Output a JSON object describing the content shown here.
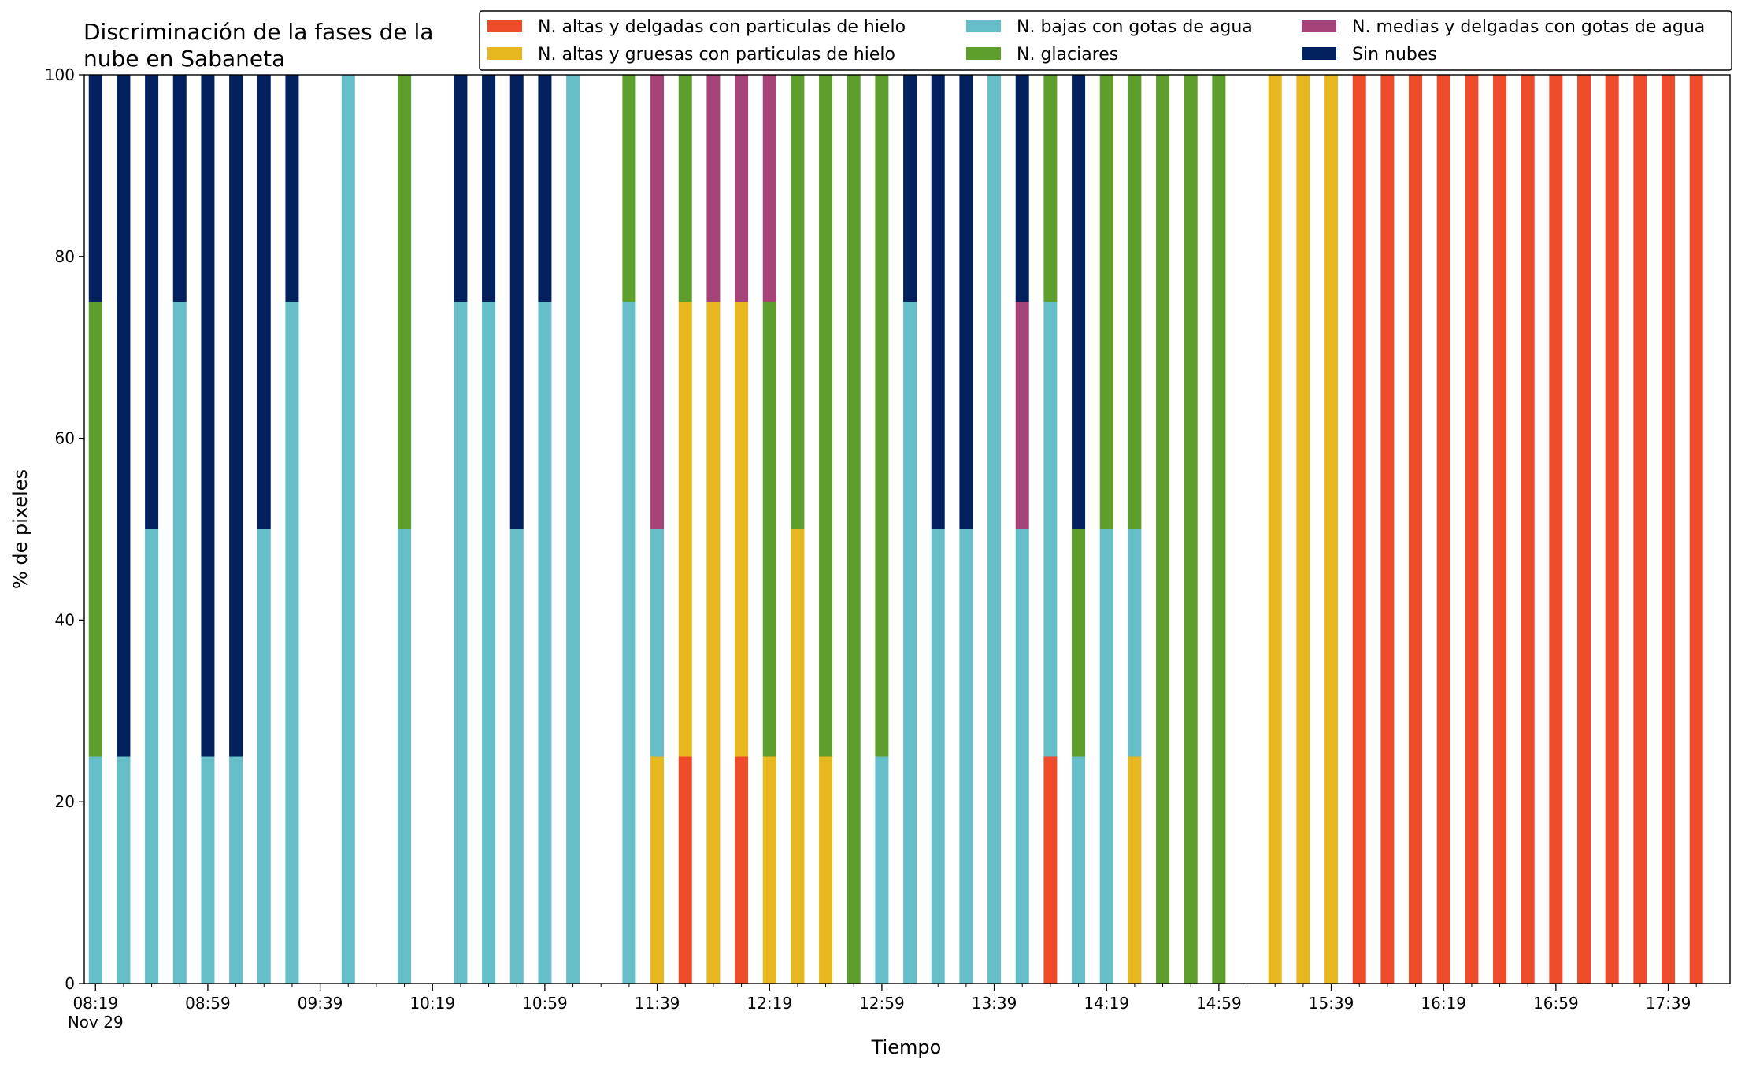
{
  "chart_data": {
    "type": "stacked_bar",
    "title": "Discriminación de la fases de la\nnube en Sabaneta",
    "x_label": "Tiempo",
    "y_label": "% de pixeles",
    "x_date_label": "Nov 29",
    "x": [
      "08:19",
      "08:29",
      "08:39",
      "08:49",
      "08:59",
      "09:09",
      "09:19",
      "09:29",
      "09:39",
      "09:49",
      "09:59",
      "10:09",
      "10:19",
      "10:29",
      "10:39",
      "10:49",
      "10:59",
      "11:09",
      "11:19",
      "11:29",
      "11:39",
      "11:49",
      "11:59",
      "12:09",
      "12:19",
      "12:29",
      "12:39",
      "12:49",
      "12:59",
      "13:09",
      "13:19",
      "13:29",
      "13:39",
      "13:49",
      "13:59",
      "14:09",
      "14:19",
      "14:29",
      "14:39",
      "14:49",
      "14:59",
      "15:09",
      "15:19",
      "15:29",
      "15:39",
      "15:49",
      "15:59",
      "16:09",
      "16:19",
      "16:29",
      "16:39",
      "16:49",
      "16:59",
      "17:09",
      "17:19",
      "17:29",
      "17:39",
      "17:49"
    ],
    "xlim": [
      "08:15",
      "18:01"
    ],
    "xticks": [
      "08:19",
      "08:59",
      "09:39",
      "10:19",
      "10:59",
      "11:39",
      "12:19",
      "12:59",
      "13:39",
      "14:19",
      "14:59",
      "15:39",
      "16:19",
      "16:59",
      "17:39"
    ],
    "ylim": [
      0,
      100
    ],
    "yticks": [
      0,
      20,
      40,
      60,
      80,
      100
    ],
    "legend": "top-right",
    "series": [
      {
        "name": "N. altas y delgadas con particulas de hielo",
        "color": "#ee4b2b",
        "values": [
          0,
          0,
          0,
          0,
          0,
          0,
          0,
          0,
          0,
          0,
          0,
          0,
          0,
          0,
          0,
          0,
          0,
          0,
          0,
          0,
          0,
          25,
          0,
          25,
          0,
          0,
          0,
          0,
          0,
          0,
          0,
          0,
          0,
          0,
          25,
          0,
          0,
          0,
          0,
          0,
          0,
          0,
          0,
          0,
          0,
          100,
          100,
          100,
          100,
          100,
          100,
          100,
          100,
          100,
          100,
          100,
          100,
          100
        ]
      },
      {
        "name": "N. altas y gruesas con particulas de hielo",
        "color": "#e6b71e",
        "values": [
          0,
          0,
          0,
          0,
          0,
          0,
          0,
          0,
          0,
          0,
          0,
          0,
          0,
          0,
          0,
          0,
          0,
          0,
          0,
          0,
          25,
          50,
          75,
          50,
          25,
          50,
          25,
          0,
          0,
          0,
          0,
          0,
          0,
          0,
          0,
          0,
          0,
          25,
          0,
          0,
          0,
          0,
          100,
          100,
          100,
          0,
          0,
          0,
          0,
          0,
          0,
          0,
          0,
          0,
          0,
          0,
          0,
          0
        ]
      },
      {
        "name": "N. bajas con gotas de agua",
        "color": "#65bec8",
        "values": [
          25,
          25,
          50,
          75,
          25,
          25,
          50,
          75,
          0,
          100,
          0,
          50,
          0,
          75,
          75,
          50,
          75,
          100,
          0,
          75,
          25,
          0,
          0,
          0,
          0,
          0,
          0,
          0,
          25,
          75,
          50,
          50,
          100,
          50,
          50,
          25,
          50,
          25,
          0,
          0,
          0,
          0,
          0,
          0,
          0,
          0,
          0,
          0,
          0,
          0,
          0,
          0,
          0,
          0,
          0,
          0,
          0,
          0
        ]
      },
      {
        "name": "N. glaciares",
        "color": "#5d9e2c",
        "values": [
          50,
          0,
          0,
          0,
          0,
          0,
          0,
          0,
          0,
          0,
          0,
          50,
          0,
          0,
          0,
          0,
          0,
          0,
          0,
          25,
          0,
          25,
          0,
          0,
          50,
          50,
          75,
          100,
          75,
          0,
          0,
          0,
          0,
          0,
          25,
          25,
          50,
          50,
          100,
          100,
          100,
          0,
          0,
          0,
          0,
          0,
          0,
          0,
          0,
          0,
          0,
          0,
          0,
          0,
          0,
          0,
          0,
          0
        ]
      },
      {
        "name": "N. medias y delgadas con gotas de agua",
        "color": "#a64479",
        "values": [
          0,
          0,
          0,
          0,
          0,
          0,
          0,
          0,
          0,
          0,
          0,
          0,
          0,
          0,
          0,
          0,
          0,
          0,
          0,
          0,
          50,
          0,
          25,
          25,
          25,
          0,
          0,
          0,
          0,
          0,
          0,
          0,
          0,
          25,
          0,
          0,
          0,
          0,
          0,
          0,
          0,
          0,
          0,
          0,
          0,
          0,
          0,
          0,
          0,
          0,
          0,
          0,
          0,
          0,
          0,
          0,
          0,
          0
        ]
      },
      {
        "name": "Sin nubes",
        "color": "#03215f",
        "values": [
          25,
          75,
          50,
          25,
          75,
          75,
          50,
          25,
          0,
          0,
          0,
          0,
          0,
          25,
          25,
          50,
          25,
          0,
          0,
          0,
          0,
          0,
          0,
          0,
          0,
          0,
          0,
          0,
          0,
          25,
          50,
          50,
          0,
          25,
          0,
          50,
          0,
          0,
          0,
          0,
          0,
          0,
          0,
          0,
          0,
          0,
          0,
          0,
          0,
          0,
          0,
          0,
          0,
          0,
          0,
          0,
          0,
          0
        ]
      }
    ]
  }
}
